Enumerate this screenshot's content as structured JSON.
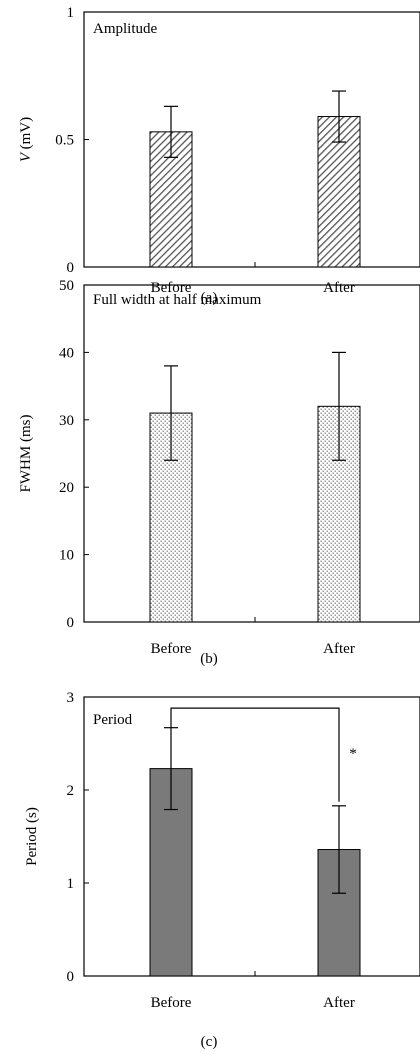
{
  "chart_data": [
    {
      "type": "bar",
      "panel_label": "(a)",
      "title": "Amplitude",
      "ylabel": "V (mV)",
      "ylabel_italic_part": "V",
      "ylabel_rest": "(mV)",
      "categories": [
        "Before",
        "After"
      ],
      "values": [
        0.53,
        0.59
      ],
      "errors": [
        0.1,
        0.1
      ],
      "ylim": [
        0,
        1
      ],
      "yticks": [
        0,
        0.5,
        1
      ],
      "ytick_labels": [
        "0",
        "0.5",
        "1"
      ],
      "bar_fill": "diagonal-hatch",
      "bar_color": "#555555",
      "grid": false
    },
    {
      "type": "bar",
      "panel_label": "(b)",
      "title": "Full width at half maximum",
      "ylabel": "FWHM (ms)",
      "categories": [
        "Before",
        "After"
      ],
      "values": [
        31,
        32
      ],
      "errors": [
        7,
        8
      ],
      "ylim": [
        0,
        50
      ],
      "yticks": [
        0,
        10,
        20,
        30,
        40,
        50
      ],
      "ytick_labels": [
        "0",
        "10",
        "20",
        "30",
        "40",
        "50"
      ],
      "bar_fill": "dotted",
      "bar_color": "#9a9a9a",
      "grid": false
    },
    {
      "type": "bar",
      "panel_label": "(c)",
      "title": "Period",
      "ylabel": "Period (s)",
      "categories": [
        "Before",
        "After"
      ],
      "values": [
        2.23,
        1.36
      ],
      "errors": [
        0.44,
        0.47
      ],
      "ylim": [
        0,
        3
      ],
      "yticks": [
        0,
        1,
        2,
        3
      ],
      "ytick_labels": [
        "0",
        "1",
        "2",
        "3"
      ],
      "bar_fill": "solid",
      "bar_color": "#7a7a7a",
      "significance": {
        "between": [
          "Before",
          "After"
        ],
        "level_value": 2.88,
        "marker": "*"
      },
      "grid": false
    }
  ]
}
